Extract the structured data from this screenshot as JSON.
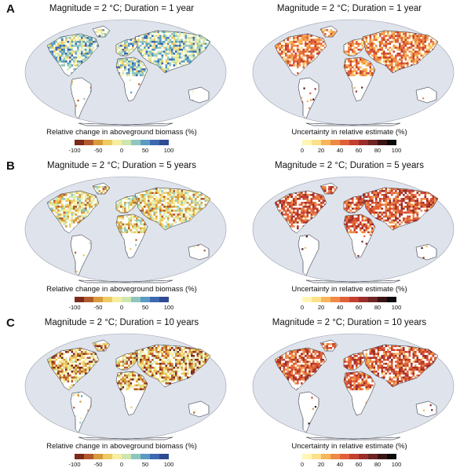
{
  "rows": [
    {
      "letter": "A",
      "left_title": "Magnitude = 2 °C; Duration = 1 year",
      "right_title": "Magnitude = 2 °C; Duration = 1 year"
    },
    {
      "letter": "B",
      "left_title": "Magnitude = 2 °C; Duration = 5 years",
      "right_title": "Magnitude = 2 °C; Duration = 5 years"
    },
    {
      "letter": "C",
      "left_title": "Magnitude = 2 °C; Duration = 10 years",
      "right_title": "Magnitude = 2 °C; Duration = 10 years"
    }
  ],
  "colorbars": {
    "biomass": {
      "title": "Relative change in aboveground biomass (%)",
      "ticks": [
        "-100",
        "-50",
        "0",
        "50",
        "100"
      ],
      "colors": [
        "#7b2a1c",
        "#b25a2b",
        "#d79a3c",
        "#eccb62",
        "#f6eda0",
        "#cfe6b0",
        "#8fc7c0",
        "#5a9bc3",
        "#3e68b0",
        "#2d4a92"
      ]
    },
    "uncertainty": {
      "title": "Uncertainty in relative estimate (%)",
      "ticks": [
        "0",
        "20",
        "40",
        "60",
        "80",
        "100"
      ],
      "colors": [
        "#fff6b5",
        "#fde08a",
        "#f7b65a",
        "#ee8a45",
        "#e0603a",
        "#c4402f",
        "#9a2e2a",
        "#6e2422",
        "#3a1414",
        "#0b0b0b"
      ]
    }
  },
  "colors": {
    "ocean": "#dfe3ec",
    "land": "#ffffff",
    "outline": "#4a4f5a"
  }
}
